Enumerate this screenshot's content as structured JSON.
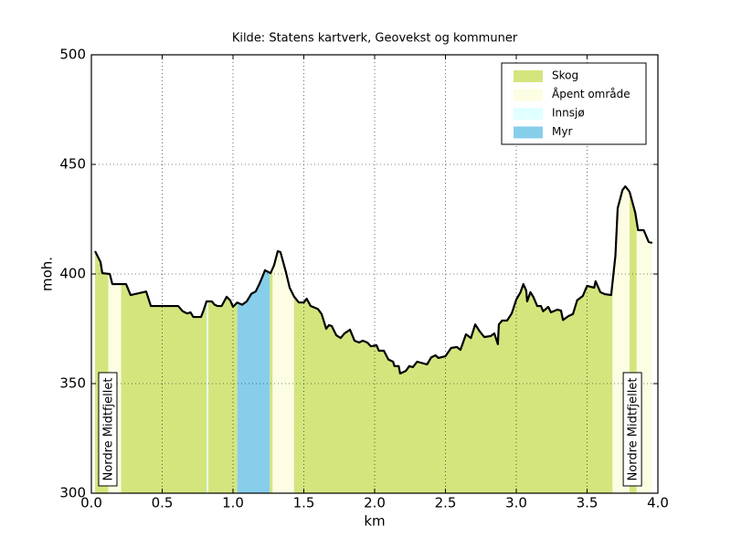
{
  "chart_data": {
    "type": "elevation-profile",
    "title": "Kilde: Statens kartverk, Geovekst og kommuner",
    "x_label": "km",
    "y_label": "moh.",
    "xlim": [
      0,
      4
    ],
    "ylim": [
      300,
      500
    ],
    "xticks": [
      {
        "value": 0,
        "label": "0.0"
      },
      0.5,
      {
        "value": 1,
        "label": "1.0"
      },
      1.5,
      {
        "value": 2,
        "label": "2.0"
      },
      2.5,
      {
        "value": 3,
        "label": "3.0"
      },
      3.5,
      {
        "value": 4,
        "label": "4.0"
      }
    ],
    "yticks": [
      300,
      350,
      400,
      450,
      500
    ],
    "grid": true,
    "legend": "upper right",
    "line_color": "#000000",
    "x": [
      0.026,
      0.065,
      0.077,
      0.13,
      0.148,
      0.245,
      0.277,
      0.32,
      0.387,
      0.42,
      0.613,
      0.645,
      0.677,
      0.7,
      0.72,
      0.774,
      0.79,
      0.813,
      0.85,
      0.87,
      0.89,
      0.92,
      0.955,
      0.98,
      1.0,
      1.03,
      1.065,
      1.097,
      1.13,
      1.16,
      1.19,
      1.226,
      1.265,
      1.29,
      1.316,
      1.335,
      1.374,
      1.4,
      1.432,
      1.465,
      1.5,
      1.52,
      1.548,
      1.6,
      1.626,
      1.658,
      1.677,
      1.697,
      1.73,
      1.76,
      1.787,
      1.826,
      1.858,
      1.89,
      1.916,
      1.948,
      1.974,
      2.013,
      2.03,
      2.065,
      2.097,
      2.13,
      2.14,
      2.17,
      2.18,
      2.22,
      2.245,
      2.27,
      2.3,
      2.37,
      2.4,
      2.43,
      2.45,
      2.5,
      2.54,
      2.58,
      2.606,
      2.645,
      2.68,
      2.71,
      2.74,
      2.774,
      2.82,
      2.845,
      2.87,
      2.877,
      2.9,
      2.935,
      2.968,
      3.0,
      3.03,
      3.05,
      3.07,
      3.077,
      3.1,
      3.12,
      3.148,
      3.174,
      3.19,
      3.226,
      3.245,
      3.29,
      3.316,
      3.33,
      3.368,
      3.4,
      3.43,
      3.47,
      3.5,
      3.55,
      3.56,
      3.594,
      3.626,
      3.67,
      3.7,
      3.716,
      3.75,
      3.77,
      3.8,
      3.84,
      3.86,
      3.9,
      3.935,
      3.96
    ],
    "values": [
      410.4,
      405.4,
      400.4,
      400,
      395.4,
      395.4,
      390.4,
      391,
      392,
      385.4,
      385.4,
      383,
      382,
      382.5,
      380.4,
      380.4,
      383,
      387.5,
      387.5,
      386,
      385.4,
      385.4,
      389.6,
      388,
      385,
      387,
      386,
      387.5,
      391,
      392,
      396,
      401.7,
      400.4,
      404,
      410.4,
      410,
      400.8,
      393.75,
      389.6,
      387,
      387,
      388.75,
      385.4,
      384,
      381.7,
      375,
      376.7,
      376.25,
      372,
      370.8,
      372.9,
      374.6,
      369.6,
      368.75,
      369.6,
      368.75,
      367,
      367.5,
      365,
      365,
      361,
      360,
      358,
      358,
      354.6,
      355.8,
      358,
      357.5,
      360,
      358.75,
      362,
      362.9,
      361.7,
      362.5,
      366.25,
      366.7,
      365.4,
      372.5,
      370.8,
      377,
      374,
      371.25,
      371.7,
      372.9,
      368,
      377,
      378.75,
      378.75,
      382,
      388.3,
      391.7,
      395.4,
      392.5,
      387.5,
      391.7,
      389.6,
      385.4,
      385.4,
      383,
      385,
      382.5,
      383.75,
      383.3,
      379,
      380.8,
      381.7,
      388,
      390,
      394.6,
      393.75,
      396.7,
      391.7,
      390.8,
      390.4,
      408.3,
      430,
      438.3,
      440,
      437.5,
      428,
      420,
      420,
      414.6,
      414.2
    ],
    "cover": [
      {
        "name": "Skog",
        "color": "#d4e57e",
        "spans": [
          [
            0.026,
            0.12
          ],
          [
            0.21,
            0.815
          ],
          [
            0.825,
            1.03
          ],
          [
            1.26,
            1.28
          ],
          [
            1.43,
            3.68
          ],
          [
            3.8,
            3.85
          ]
        ]
      },
      {
        "name": "Åpent område",
        "color": "#fcfde2",
        "spans": [
          [
            0.12,
            0.21
          ],
          [
            1.28,
            1.43
          ],
          [
            3.68,
            3.8
          ],
          [
            3.85,
            3.96
          ]
        ]
      },
      {
        "name": "Innsjø",
        "color": "#e0ffff",
        "spans": [
          [
            0.815,
            0.825
          ]
        ]
      },
      {
        "name": "Myr",
        "color": "#87ceeb",
        "spans": [
          [
            1.03,
            1.26
          ]
        ]
      }
    ],
    "annotations": [
      {
        "text": "Nordre Midtfjellet",
        "x": 0.116
      },
      {
        "text": "Nordre Midtfjellet",
        "x": 3.82
      }
    ]
  }
}
